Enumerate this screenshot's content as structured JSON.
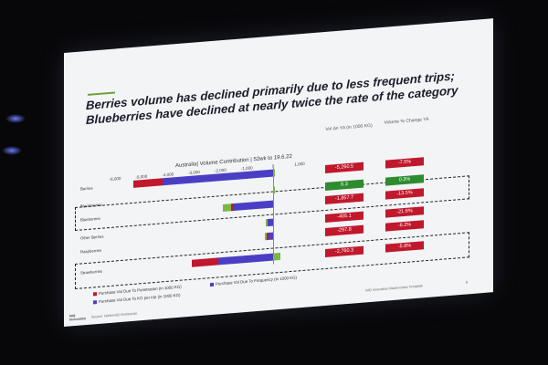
{
  "slide": {
    "title_line1": "Berries volume has declined primarily due to less frequent trips;",
    "title_line2": "Blueberries have declined at nearly twice the rate of the category",
    "chart_header": "Australia| Volume Contribution | 52wk to 19.6.22",
    "col_vol_header": "Vol ∆n YA (in 1000 KG)",
    "col_pct_header": "Volume % Change YA",
    "legend": [
      {
        "label": "Purchase Vol Due To Penetration (in 1000 KG)",
        "color": "#c0182c"
      },
      {
        "label": "Purchase Vol Due To Frequency (in 1000 KG)",
        "color": "#4a3fc4"
      },
      {
        "label": "Purchase Vol Due To KG per trip (in 1000 KG)",
        "color": "#7ab744"
      }
    ],
    "source": "Source: NielsenIQ Homescan",
    "logo_line1": "NIQ",
    "logo_line2": "Innovation",
    "footer_right": "NIQ Innovation Masterclass Template",
    "page_number": "6",
    "colors": {
      "negative": "#c0182c",
      "positive": "#2e8b2e",
      "frequency": "#4a3fc4",
      "kg_per_trip": "#7ab744"
    }
  },
  "chart_data": {
    "type": "bar",
    "orientation": "horizontal-stacked",
    "title": "Australia| Volume Contribution | 52wk to 19.6.22",
    "x_ticks": [
      "-6,000",
      "-5,000",
      "-4,000",
      "-3,000",
      "-2,000",
      "-1,000",
      "0",
      "1,000"
    ],
    "xlim": [
      -6000,
      1000
    ],
    "categories": [
      "Berries",
      "Blackberries",
      "Blueberries",
      "Other Berries",
      "Raspberries",
      "Strawberries"
    ],
    "series": [
      {
        "name": "Purchase Vol Due To Penetration (in 1000 KG)",
        "values": [
          -1100,
          0,
          -100,
          0,
          -60,
          -1000
        ]
      },
      {
        "name": "Purchase Vol Due To Frequency (in 1000 KG)",
        "values": [
          -4200,
          0,
          -1500,
          -200,
          -200,
          -2100
        ]
      },
      {
        "name": "Purchase Vol Due To KG per trip (in 1000 KG)",
        "values": [
          50,
          10,
          -300,
          -80,
          -50,
          280
        ]
      }
    ],
    "vol_change": [
      "-5,260.5",
      "6.3",
      "-1,857.7",
      "-405.1",
      "-297.8",
      "-2,760.3"
    ],
    "pct_change": [
      "-7.5%",
      "0.3%",
      "-13.5%",
      "-21.6%",
      "-6.2%",
      "-5.8%"
    ],
    "grid": false
  }
}
